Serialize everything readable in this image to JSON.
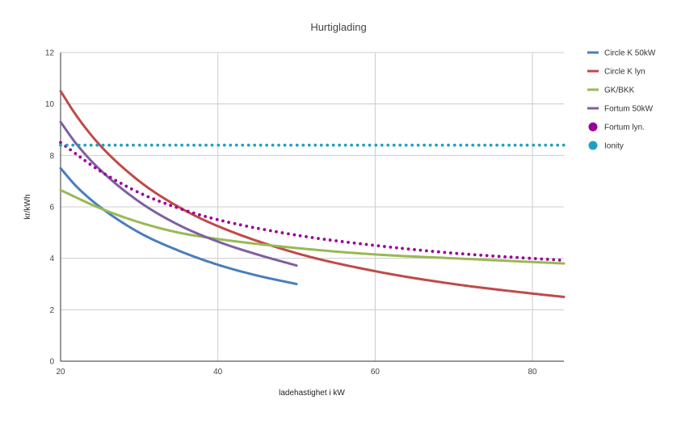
{
  "chart_data": {
    "type": "line",
    "title": "Hurtiglading",
    "xlabel": "ladehastighet i kW",
    "ylabel": "kr/kWh",
    "xlim": [
      20,
      84
    ],
    "ylim": [
      0,
      12
    ],
    "xticks": [
      20,
      40,
      60,
      80
    ],
    "yticks": [
      0,
      2,
      4,
      6,
      8,
      10,
      12
    ],
    "grid": true,
    "legend_position": "right",
    "series": [
      {
        "name": "Circle K 50kW",
        "color": "#4a7ebb",
        "style": "solid",
        "x": [
          20,
          22,
          25,
          30,
          35,
          40,
          45,
          50
        ],
        "y": [
          7.5,
          6.8,
          6.0,
          5.0,
          4.3,
          3.75,
          3.33,
          3.0
        ]
      },
      {
        "name": "Circle K lyn",
        "color": "#be4b48",
        "style": "solid",
        "x": [
          20,
          22,
          25,
          30,
          35,
          40,
          50,
          60,
          70,
          80,
          84
        ],
        "y": [
          10.5,
          9.55,
          8.4,
          7.0,
          6.0,
          5.25,
          4.2,
          3.5,
          3.0,
          2.63,
          2.5
        ]
      },
      {
        "name": "GK/BKK",
        "color": "#98b954",
        "style": "solid",
        "x": [
          20,
          25,
          30,
          35,
          40,
          50,
          60,
          70,
          84
        ],
        "y": [
          6.65,
          5.95,
          5.4,
          5.0,
          4.75,
          4.4,
          4.15,
          4.0,
          3.8
        ]
      },
      {
        "name": "Fortum 50kW",
        "color": "#7d60a0",
        "style": "solid",
        "x": [
          20,
          22,
          25,
          30,
          35,
          40,
          45,
          50
        ],
        "y": [
          9.3,
          8.45,
          7.45,
          6.2,
          5.3,
          4.65,
          4.15,
          3.72
        ]
      },
      {
        "name": "Fortum lyn.",
        "color": "#990099",
        "style": "dotted",
        "x": [
          20,
          25,
          30,
          35,
          40,
          50,
          60,
          70,
          84
        ],
        "y": [
          8.5,
          7.4,
          6.55,
          5.95,
          5.5,
          4.9,
          4.5,
          4.2,
          3.92
        ]
      },
      {
        "name": "Ionity",
        "color": "#1fa0c2",
        "style": "dotted",
        "x": [
          20,
          84
        ],
        "y": [
          8.4,
          8.4
        ]
      }
    ]
  }
}
